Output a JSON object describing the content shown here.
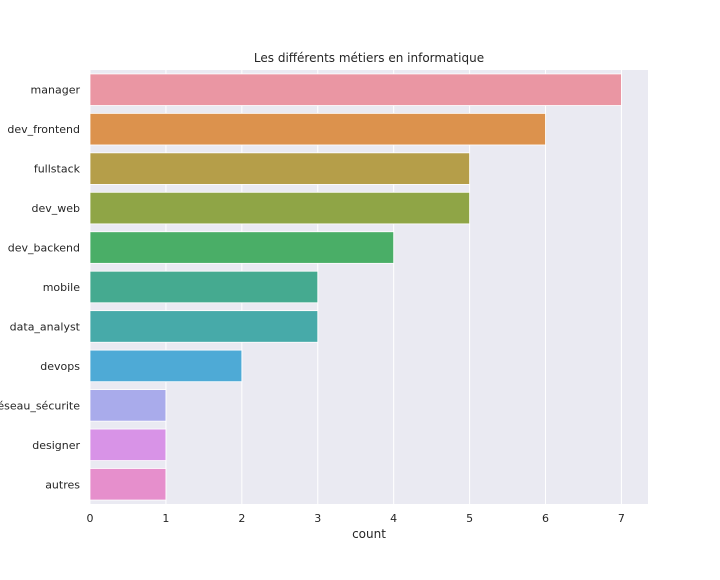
{
  "chart_data": {
    "type": "bar",
    "orientation": "horizontal",
    "title": "Les différents métiers en informatique",
    "xlabel": "count",
    "ylabel": "",
    "categories": [
      "manager",
      "dev_frontend",
      "fullstack",
      "dev_web",
      "dev_backend",
      "mobile",
      "data_analyst",
      "devops",
      "réseau_sécurite",
      "designer",
      "autres"
    ],
    "values": [
      7,
      6,
      5,
      5,
      4,
      3,
      3,
      2,
      1,
      1,
      1
    ],
    "colors": [
      "#ea96a3",
      "#dc924d",
      "#b59e49",
      "#8fa546",
      "#4aae67",
      "#45aa90",
      "#47aaa9",
      "#4eaad6",
      "#a9abeb",
      "#d893e7",
      "#e68fcc"
    ],
    "xticks": [
      "0",
      "1",
      "2",
      "3",
      "4",
      "5",
      "6",
      "7"
    ],
    "xlim": [
      0,
      7.35
    ],
    "grid": true,
    "plot_background": "#eaeaf2",
    "grid_color": "#ffffff"
  }
}
